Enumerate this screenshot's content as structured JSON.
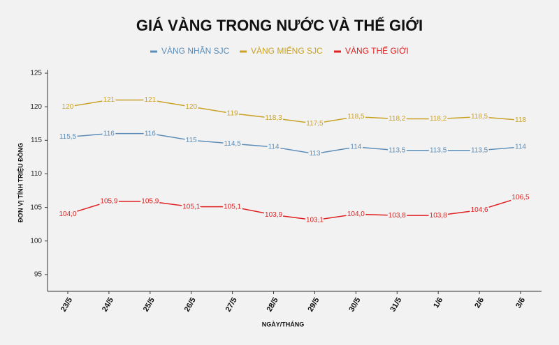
{
  "chart_data": {
    "type": "line",
    "title": "GIÁ VÀNG TRONG NƯỚC VÀ THẾ GIỚI",
    "x_label": "NGÀY/THÁNG",
    "y_label": "ĐƠN VỊ TÍNH TRIỆU ĐỒNG",
    "categories": [
      "23/5",
      "24/5",
      "25/5",
      "26/5",
      "27/5",
      "28/5",
      "29/5",
      "30/5",
      "31/5",
      "1/6",
      "2/6",
      "3/6"
    ],
    "series": [
      {
        "name": "VÀNG NHẪN SJC",
        "color": "#5b8db8",
        "values": [
          115.5,
          116,
          116,
          115,
          114.5,
          114,
          113,
          114,
          113.5,
          113.5,
          113.5,
          114
        ],
        "value_labels": [
          "115,5",
          "116",
          "116",
          "115",
          "114,5",
          "114",
          "113",
          "114",
          "113,5",
          "113,5",
          "113,5",
          "114"
        ]
      },
      {
        "name": "VÀNG MIẾNG SJC",
        "color": "#c9a227",
        "values": [
          120,
          121,
          121,
          120,
          119,
          118.3,
          117.5,
          118.5,
          118.2,
          118.2,
          118.5,
          118
        ],
        "value_labels": [
          "120",
          "121",
          "121",
          "120",
          "119",
          "118,3",
          "117,5",
          "118,5",
          "118,2",
          "118,2",
          "118,5",
          "118"
        ]
      },
      {
        "name": "VÀNG THẾ GIỚI",
        "color": "#e02020",
        "values": [
          104.0,
          105.9,
          105.9,
          105.1,
          105.1,
          103.9,
          103.1,
          104.0,
          103.8,
          103.8,
          104.6,
          106.5
        ],
        "value_labels": [
          "104,0",
          "105,9",
          "105,9",
          "105,1",
          "105,1",
          "103,9",
          "103,1",
          "104,0",
          "103,8",
          "103,8",
          "104,6",
          "106,5"
        ]
      }
    ],
    "ylim": [
      92.5,
      125
    ],
    "yticks": [
      95,
      100,
      105,
      110,
      115,
      120,
      125
    ],
    "grid": false
  }
}
